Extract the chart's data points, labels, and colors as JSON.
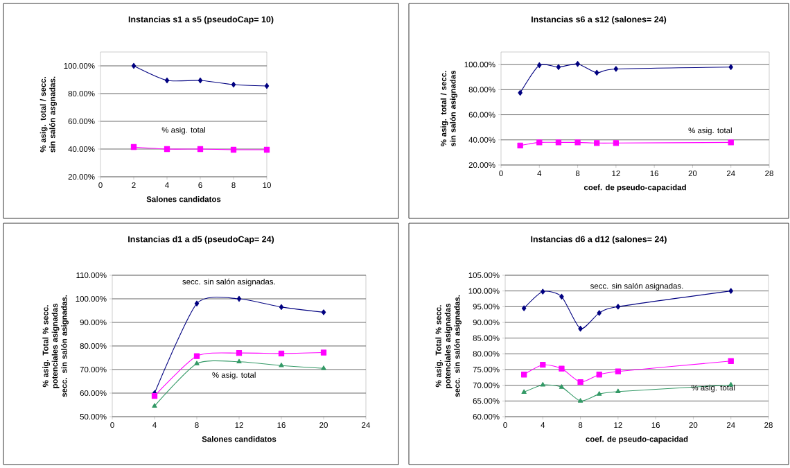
{
  "chart_data": [
    {
      "type": "line",
      "title": "Instancias s1 a s5 (pseudoCap= 10)",
      "xlabel": "Salones candidatos",
      "ylabel": "% asig. total / secc. sin salón asgnadas.",
      "grid": "y",
      "line_style": "solid",
      "xlim": [
        0,
        10
      ],
      "xticks": [
        0,
        2,
        4,
        6,
        8,
        10
      ],
      "ylim": [
        20,
        110
      ],
      "yticks": [
        {
          "value": 20,
          "label": "20.00%"
        },
        {
          "value": 40,
          "label": "40.00%"
        },
        {
          "value": 60,
          "label": "60.00%"
        },
        {
          "value": 80,
          "label": "80.00%"
        },
        {
          "value": 100,
          "label": "100.00%"
        }
      ],
      "annotations": [
        "% asig. total"
      ],
      "series": [
        {
          "color": "#000080",
          "marker": "diamond",
          "x": [
            2,
            4,
            6,
            8,
            10
          ],
          "values": [
            100,
            89.5,
            89.5,
            86.5,
            85.5
          ]
        },
        {
          "color": "#ff00ff",
          "marker": "square",
          "x": [
            2,
            4,
            6,
            8,
            10
          ],
          "values": [
            41.5,
            40,
            40,
            39.5,
            39.5
          ]
        }
      ]
    },
    {
      "type": "line",
      "title": "Instancias s6 a s12 (salones= 24)",
      "xlabel": "coef. de pseudo-capacidad",
      "ylabel": "% asig. total / secc. sin salón asignadas",
      "grid": "y",
      "line_style": "solid",
      "xlim": [
        0,
        28
      ],
      "xticks": [
        0,
        4,
        8,
        12,
        16,
        20,
        24,
        28
      ],
      "ylim": [
        20,
        110
      ],
      "yticks": [
        {
          "value": 20,
          "label": "20.00%"
        },
        {
          "value": 40,
          "label": "40.00%"
        },
        {
          "value": 60,
          "label": "60.00%"
        },
        {
          "value": 80,
          "label": "80.00%"
        },
        {
          "value": 100,
          "label": "100.00%"
        }
      ],
      "annotations": [
        "% asig. total"
      ],
      "series": [
        {
          "color": "#000080",
          "marker": "diamond",
          "x": [
            2,
            4,
            6,
            8,
            10,
            12,
            24
          ],
          "values": [
            77.5,
            99.5,
            98,
            100.5,
            93.5,
            96.5,
            98
          ]
        },
        {
          "color": "#ff00ff",
          "marker": "square",
          "x": [
            2,
            4,
            6,
            8,
            10,
            12,
            24
          ],
          "values": [
            35.5,
            38,
            38,
            38,
            37.5,
            37.5,
            38
          ]
        }
      ]
    },
    {
      "type": "line",
      "title": "Instancias d1 a d5 (pseudoCap= 24)",
      "xlabel": "Salones candidatos",
      "ylabel": "% asig. Total % secc. potenciales asignadas secc. sin salón asignadas.",
      "grid": "y",
      "line_style": "solid",
      "xlim": [
        0,
        24
      ],
      "xticks": [
        0,
        4,
        8,
        12,
        16,
        20,
        24
      ],
      "ylim": [
        50,
        110
      ],
      "yticks": [
        {
          "value": 50,
          "label": "50.00%"
        },
        {
          "value": 60,
          "label": "60.00%"
        },
        {
          "value": 70,
          "label": "70.00%"
        },
        {
          "value": 80,
          "label": "80.00%"
        },
        {
          "value": 90,
          "label": "90.00%"
        },
        {
          "value": 100,
          "label": "100.00%"
        },
        {
          "value": 110,
          "label": "110.00%"
        }
      ],
      "annotations": [
        "secc. sin salón asignadas.",
        "% asig. total"
      ],
      "series": [
        {
          "color": "#000080",
          "marker": "diamond",
          "x": [
            4,
            8,
            12,
            16,
            20
          ],
          "values": [
            60,
            98,
            100,
            96.5,
            94.3
          ]
        },
        {
          "color": "#ff00ff",
          "marker": "square",
          "x": [
            4,
            8,
            12,
            16,
            20
          ],
          "values": [
            58.8,
            75.7,
            77,
            76.8,
            77.2
          ]
        },
        {
          "color": "#339966",
          "marker": "triangle",
          "x": [
            4,
            8,
            12,
            16,
            20
          ],
          "values": [
            54.5,
            72.5,
            73.3,
            71.7,
            70.5
          ]
        }
      ]
    },
    {
      "type": "line",
      "title": "Instancias d6 a d12 (salones= 24)",
      "xlabel": "coef. de pseudo-capacidad",
      "ylabel": "% asig. Total % secc. potenciales asignadas secc. sin salón asignadas.",
      "grid": "y",
      "line_style": "solid",
      "xlim": [
        0,
        28
      ],
      "xticks": [
        0,
        4,
        8,
        12,
        16,
        20,
        24,
        28
      ],
      "ylim": [
        60,
        105
      ],
      "yticks": [
        {
          "value": 60,
          "label": "60.00%"
        },
        {
          "value": 65,
          "label": "65.00%"
        },
        {
          "value": 70,
          "label": "70.00%"
        },
        {
          "value": 75,
          "label": "75.00%"
        },
        {
          "value": 80,
          "label": "80.00%"
        },
        {
          "value": 85,
          "label": "85.00%"
        },
        {
          "value": 90,
          "label": "90.00%"
        },
        {
          "value": 95,
          "label": "95.00%"
        },
        {
          "value": 100,
          "label": "100.00%"
        },
        {
          "value": 105,
          "label": "105.00%"
        }
      ],
      "annotations": [
        "secc. sin salón asignadas.",
        "% asig. total"
      ],
      "series": [
        {
          "color": "#000080",
          "marker": "diamond",
          "x": [
            2,
            4,
            6,
            8,
            10,
            12,
            24
          ],
          "values": [
            94.5,
            99.8,
            98.2,
            88,
            93,
            95,
            100
          ]
        },
        {
          "color": "#ff00ff",
          "marker": "square",
          "x": [
            2,
            4,
            6,
            8,
            10,
            12,
            24
          ],
          "values": [
            73.4,
            76.5,
            75.3,
            71,
            73.4,
            74.4,
            77.7
          ]
        },
        {
          "color": "#339966",
          "marker": "triangle",
          "x": [
            2,
            4,
            6,
            8,
            10,
            12,
            24
          ],
          "values": [
            67.8,
            70.1,
            69.4,
            65,
            67.2,
            68,
            70.1
          ]
        }
      ]
    }
  ]
}
